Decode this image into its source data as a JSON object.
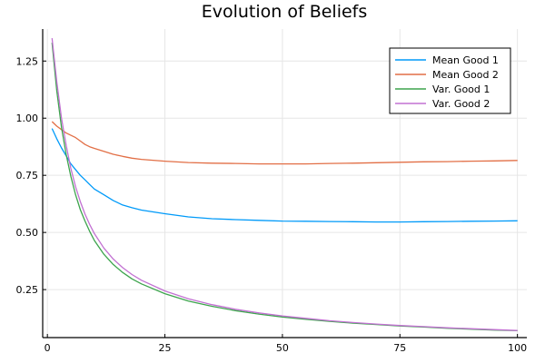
{
  "chart_data": {
    "type": "line",
    "title": "Evolution of Beliefs",
    "xlabel": "",
    "ylabel": "",
    "xlim": [
      -1,
      102
    ],
    "ylim": [
      0.04,
      1.39
    ],
    "xticks": [
      0,
      25,
      50,
      75,
      100
    ],
    "xtick_labels": [
      "0",
      "25",
      "50",
      "75",
      "100"
    ],
    "yticks": [
      0.25,
      0.5,
      0.75,
      1.0,
      1.25
    ],
    "ytick_labels": [
      "0.25",
      "0.50",
      "0.75",
      "1.00",
      "1.25"
    ],
    "grid": true,
    "legend_position": "top-right",
    "x": [
      1,
      2,
      3,
      4,
      5,
      6,
      7,
      8,
      9,
      10,
      12,
      14,
      16,
      18,
      20,
      25,
      30,
      35,
      40,
      45,
      50,
      55,
      60,
      65,
      70,
      75,
      80,
      85,
      90,
      95,
      100
    ],
    "series": [
      {
        "name": "Mean Good 1",
        "color": "#009af9",
        "values": [
          0.955,
          0.91,
          0.87,
          0.835,
          0.8,
          0.775,
          0.75,
          0.73,
          0.71,
          0.69,
          0.665,
          0.64,
          0.62,
          0.608,
          0.598,
          0.582,
          0.568,
          0.56,
          0.556,
          0.553,
          0.55,
          0.549,
          0.548,
          0.547,
          0.546,
          0.546,
          0.547,
          0.548,
          0.549,
          0.55,
          0.551
        ]
      },
      {
        "name": "Mean Good 2",
        "color": "#e26f46",
        "values": [
          0.985,
          0.965,
          0.95,
          0.935,
          0.925,
          0.915,
          0.9,
          0.885,
          0.875,
          0.868,
          0.855,
          0.842,
          0.833,
          0.825,
          0.82,
          0.812,
          0.806,
          0.803,
          0.802,
          0.8,
          0.8,
          0.8,
          0.802,
          0.803,
          0.805,
          0.807,
          0.809,
          0.81,
          0.812,
          0.813,
          0.815
        ]
      },
      {
        "name": "Var. Good 1",
        "color": "#3da44d",
        "values": [
          1.33,
          1.12,
          0.96,
          0.84,
          0.745,
          0.665,
          0.6,
          0.55,
          0.505,
          0.465,
          0.405,
          0.36,
          0.325,
          0.297,
          0.275,
          0.232,
          0.2,
          0.177,
          0.158,
          0.143,
          0.13,
          0.12,
          0.111,
          0.103,
          0.097,
          0.091,
          0.086,
          0.081,
          0.077,
          0.073,
          0.07
        ]
      },
      {
        "name": "Var. Good 2",
        "color": "#c271d2",
        "values": [
          1.35,
          1.16,
          1.0,
          0.88,
          0.78,
          0.7,
          0.635,
          0.58,
          0.535,
          0.495,
          0.432,
          0.384,
          0.346,
          0.316,
          0.291,
          0.244,
          0.21,
          0.184,
          0.164,
          0.148,
          0.135,
          0.124,
          0.114,
          0.106,
          0.099,
          0.093,
          0.088,
          0.083,
          0.079,
          0.075,
          0.071
        ]
      }
    ]
  }
}
